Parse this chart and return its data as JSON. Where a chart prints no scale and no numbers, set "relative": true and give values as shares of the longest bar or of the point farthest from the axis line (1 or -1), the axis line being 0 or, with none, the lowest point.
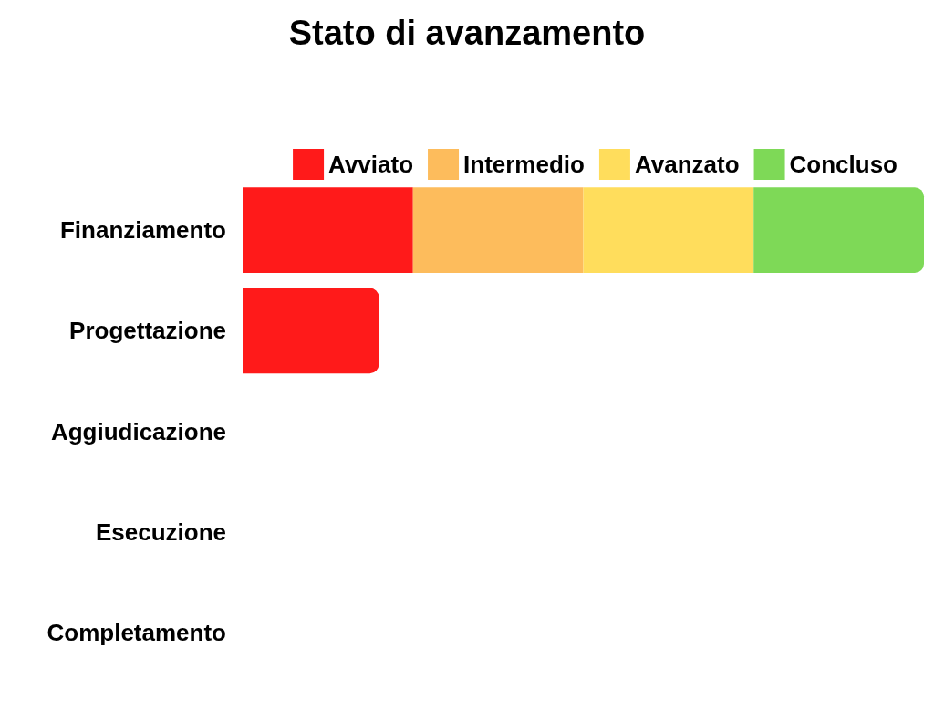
{
  "chart_data": {
    "type": "bar",
    "title": "Stato di avanzamento",
    "orientation": "horizontal",
    "stacked": true,
    "relative": true,
    "legend": "top right",
    "categories": [
      "Finanziamento",
      "Progettazione",
      "Aggiudicazione",
      "Esecuzione",
      "Completamento"
    ],
    "series": [
      {
        "name": "Avviato",
        "color": "#ff1a1a",
        "values": [
          0.25,
          0.2,
          null,
          null,
          null
        ]
      },
      {
        "name": "Intermedio",
        "color": "#fdbc5c",
        "values": [
          0.25,
          null,
          null,
          null,
          null
        ]
      },
      {
        "name": "Avanzato",
        "color": "#ffdd5c",
        "values": [
          0.25,
          null,
          null,
          null,
          null
        ]
      },
      {
        "name": "Concluso",
        "color": "#7ed957",
        "values": [
          0.25,
          null,
          null,
          null,
          null
        ]
      }
    ]
  }
}
